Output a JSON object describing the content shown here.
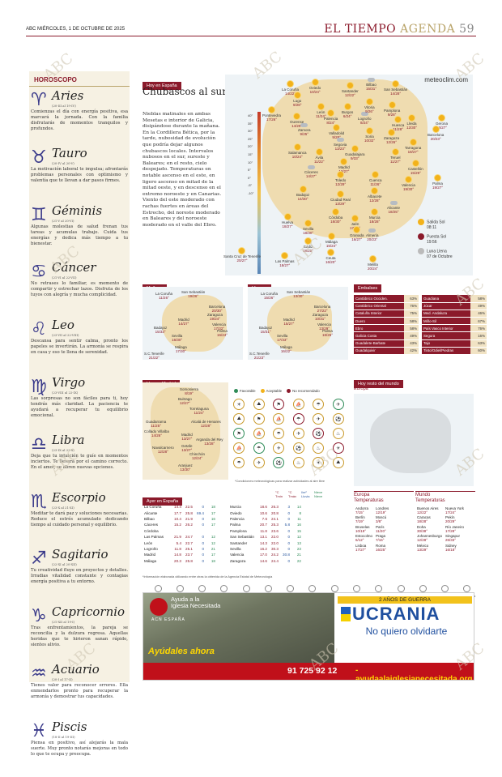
{
  "header": {
    "left": "ABC   MIÉRCOLES, 1 DE OCTUBRE DE 2025",
    "section": "EL TIEMPO",
    "sub": "AGENDA",
    "page": "59"
  },
  "horoscopo": {
    "title": "HOROSCOPO",
    "signs": [
      {
        "sym": "♈",
        "name": "Aries",
        "date": "(20-III al 19-IV)",
        "text": "Comienzas el día con energía positiva, esa marcará la jornada. Con la familia disfrutarás de momentos tranquilos y profundos."
      },
      {
        "sym": "♉",
        "name": "Tauro",
        "date": "(20-IV al 20-V)",
        "text": "La motivación laboral te impulsa; afrontarás problemas personales con optimismo y valentía que te llevan a dar pasos firmes."
      },
      {
        "sym": "♊",
        "name": "Géminis",
        "date": "(21-V al 20-VI)",
        "text": "Algunas molestias de salud frenan tus tareas y acumulas trabajo. Cuida tus energías y dedica más tiempo a tu bienestar."
      },
      {
        "sym": "♋",
        "name": "Cáncer",
        "date": "(21-VI al 22-VII)",
        "text": "No retrases lo familiar, es momento de compartir y estrechar lazos. Disfruta de los tuyos con alegría y mucha complicidad."
      },
      {
        "sym": "♌",
        "name": "Leo",
        "date": "(23-VII al 22-VIII)",
        "text": "Descansa para sentir calma, pronto los papeles se invertirán. La armonía se respira en casa y eso te llena de serenidad."
      },
      {
        "sym": "♍",
        "name": "Virgo",
        "date": "(23-VIII al 22-IX)",
        "text": "Las sorpresas no son fáciles para ti, hoy tendrás más claridad. La paciencia te ayudará a recuperar tu equilibrio emocional."
      },
      {
        "sym": "♎",
        "name": "Libra",
        "date": "(23-IX al 22-X)",
        "text": "Deja que tu intuición te guíe en momentos inciertos. Te llevará por el camino correcto. En el amor, se abren nuevas opciones."
      },
      {
        "sym": "♏",
        "name": "Escorpio",
        "date": "(23-X al 21-XI)",
        "text": "Meditar te dará paz y soluciones necesarias. Reduce el estrés acumulado dedicando tiempo al cuidado personal y equilibrio."
      },
      {
        "sym": "♐",
        "name": "Sagitario",
        "date": "(22-XI al 20-XII)",
        "text": "Tu creatividad fluye en proyectos y detalles. Irradias vitalidad constante y contagias energía positiva a tu entorno."
      },
      {
        "sym": "♑",
        "name": "Capricornio",
        "date": "(21-XII al 19-I)",
        "text": "Tras enfrentamientos, la pareja se reconcilia y la dulzura regresa. Aquellas heridas que te hirieron sanan rápido, sientes alivio."
      },
      {
        "sym": "♒",
        "name": "Acuario",
        "date": "(20-I al 17-II)",
        "text": "Tienes valor para reconocer errores. Ella enmendarlos pronto para recuperar la armonía y demostrar tus capacidades."
      },
      {
        "sym": "♓",
        "name": "Piscis",
        "date": "(18-II al 19-III)",
        "text": "Piensa en positivo, así alejarás la mala suerte. Muy pronto notarás mejoras en todo lo que te ocupa y preocupa."
      }
    ]
  },
  "spain": {
    "tag": "Hoy en España",
    "title": "Chubascos al sur",
    "lede": "Nieblas matinales en ambas Mesetas e interior de Galicia, disipándose durante la mañana. En la Cordillera Bética, por la tarde, nubosidad de evolución que podría dejar algunos chubascos locales. Intervalos nubosos en el sur, sureste y Baleares; en el resto, cielo despejado. Temperaturas en notable ascenso en el este, en ligero ascenso en mitad de la mitad oeste, y en descenso en el extremo noroeste y en Canarias. Viento del este moderado con rachas fuertes en áreas del Estrecho, del noreste moderado en Baleares y del noroeste moderado en el valle del Ebro.",
    "brand": "meteoclim.com",
    "scale": [
      "40°",
      "35°",
      "30°",
      "25°",
      "20°",
      "15°",
      "10°",
      "5°",
      "0°",
      "-5°",
      "-10°"
    ],
    "cities": [
      [
        "La Coruña",
        "14/22°"
      ],
      [
        "Oviedo",
        "10/24°"
      ],
      [
        "Santander",
        "12/22°"
      ],
      [
        "Bilbao",
        "15/31°"
      ],
      [
        "San Sebastián",
        "14/28°"
      ],
      [
        "Lugo",
        "9/28°"
      ],
      [
        "Pontevedra",
        "17/26°"
      ],
      [
        "León",
        "11/24°"
      ],
      [
        "Burgos",
        "6/24°"
      ],
      [
        "Palencia",
        "8/24°"
      ],
      [
        "Logroño",
        "8/24°"
      ],
      [
        "Vitoria",
        "9/26°"
      ],
      [
        "Pamplona",
        "9/28°"
      ],
      [
        "Huesca",
        "11/28°"
      ],
      [
        "Lleida",
        "12/30°"
      ],
      [
        "Gerona",
        "16/27°"
      ],
      [
        "Ourense",
        "14/29°"
      ],
      [
        "Zamora",
        "9/25°"
      ],
      [
        "Valladolid",
        "9/28°"
      ],
      [
        "Soria",
        "10/32°"
      ],
      [
        "Zaragoza",
        "12/26°"
      ],
      [
        "Barcelona",
        "20/23°"
      ],
      [
        "Tarragona",
        "18/27°"
      ],
      [
        "Salamanca",
        "10/24°"
      ],
      [
        "Segovia",
        "13/23°"
      ],
      [
        "Ávila",
        "11/22°"
      ],
      [
        "Guadalajara",
        "9/33°"
      ],
      [
        "Teruel",
        "11/27°"
      ],
      [
        "Castellón",
        "15/29°"
      ],
      [
        "Palma",
        "19/27°"
      ],
      [
        "Madrid",
        "13/27°"
      ],
      [
        "Cáceres",
        "14/27°"
      ],
      [
        "Toledo",
        "12/29°"
      ],
      [
        "Cuenca",
        "11/26°"
      ],
      [
        "Valencia",
        "19/30°"
      ],
      [
        "Badajoz",
        "14/30°"
      ],
      [
        "Ciudad Real",
        "13/29°"
      ],
      [
        "Albacete",
        "12/28°"
      ],
      [
        "Alicante",
        "18/25°"
      ],
      [
        "Huelva",
        "18/27°"
      ],
      [
        "Sevilla",
        "18/30°"
      ],
      [
        "Córdoba",
        "18/30°"
      ],
      [
        "Jaén",
        "17/22°"
      ],
      [
        "Granada",
        "16/27°"
      ],
      [
        "Murcia",
        "18/28°"
      ],
      [
        "Almería",
        "20/23°"
      ],
      [
        "Málaga",
        "15/24°"
      ],
      [
        "Cádiz",
        "18/25°"
      ],
      [
        "Ceuta",
        "16/20°"
      ],
      [
        "Melilla",
        "20/24°"
      ],
      [
        "Santa Cruz de Tenerife",
        "20/27°"
      ],
      [
        "Las Palmas",
        "18/27°"
      ]
    ],
    "legend": [
      {
        "label": "Salida Sol",
        "value": "08:11",
        "color": "#f2b21b"
      },
      {
        "label": "Puesta Sol",
        "value": "19:56",
        "color": "#8b1a2b"
      },
      {
        "label": "Luna Llena",
        "value": "07 de Octubre",
        "color": "#bbbbbb"
      }
    ]
  },
  "manana": {
    "tag": "Mañana",
    "cities": [
      [
        "La Coruña",
        "11/26°"
      ],
      [
        "San Sebastián",
        "19/26°"
      ],
      [
        "Barcelona",
        "20/30°"
      ],
      [
        "Zaragoza",
        "19/24°"
      ],
      [
        "Madrid",
        "14/27°"
      ],
      [
        "Valencia",
        "17/32°"
      ],
      [
        "Palma",
        "16/24°"
      ],
      [
        "Badajoz",
        "15/33°"
      ],
      [
        "Sevilla",
        "16/30°"
      ],
      [
        "Málaga",
        "17/30°"
      ],
      [
        "S.C.Tenerife",
        "21/22°"
      ]
    ]
  },
  "viernes": {
    "tag": "Viernes",
    "cities": [
      [
        "La Coruña",
        "15/26°"
      ],
      [
        "San Sebastián",
        "13/30°"
      ],
      [
        "Barcelona",
        "27/22°"
      ],
      [
        "Zaragoza",
        "10/31°"
      ],
      [
        "Madrid",
        "15/27°"
      ],
      [
        "Valencia",
        "13/29°"
      ],
      [
        "Palma",
        "18/26°"
      ],
      [
        "Badajoz",
        "15/31°"
      ],
      [
        "Sevilla",
        "17/33°"
      ],
      [
        "Málaga",
        "16/22°"
      ],
      [
        "S.C.Tenerife",
        "21/23°"
      ]
    ]
  },
  "embalses": {
    "tag": "Embalses",
    "left": [
      [
        "Cantábrico Occiden.",
        "63%"
      ],
      [
        "Cantábrico Oriental",
        "76%"
      ],
      [
        "Cataluña Interior",
        "75%"
      ],
      [
        "Duero",
        "58%"
      ],
      [
        "Ebro",
        "58%"
      ],
      [
        "Galicia Costa",
        "49%"
      ],
      [
        "Guadalete-Barbate",
        "43%"
      ],
      [
        "Guadalquivir",
        "42%"
      ]
    ],
    "right": [
      [
        "Guadiana",
        "58%"
      ],
      [
        "Júcar",
        "49%"
      ],
      [
        "Med. Andaluza",
        "46%"
      ],
      [
        "Miño-Sil",
        "67%"
      ],
      [
        "País Vasco Interior",
        "76%"
      ],
      [
        "Segura",
        "16%"
      ],
      [
        "Tajo",
        "63%"
      ],
      [
        "Tinto/Odiel/Piedras",
        "60%"
      ]
    ]
  },
  "madrid": {
    "tag": "Hoy en Madrid",
    "cities": [
      [
        "Somosierra",
        "8/19°"
      ],
      [
        "Buitrago",
        "12/27°"
      ],
      [
        "Torrelaguna",
        "11/24°"
      ],
      [
        "Guadarrama",
        "11/25°"
      ],
      [
        "Alcalá de Henares",
        "12/28°"
      ],
      [
        "Collado Villalba",
        "14/26°"
      ],
      [
        "Madrid",
        "13/27°"
      ],
      [
        "Arganda del Rey",
        "13/28°"
      ],
      [
        "Getafe",
        "13/27°"
      ],
      [
        "Navalcarnero",
        "12/28°"
      ],
      [
        "Chinchón",
        "12/24°"
      ],
      [
        "Aranjuez",
        "13/30°"
      ]
    ],
    "legend": [
      {
        "label": "Favorable",
        "color": "#2e8b57"
      },
      {
        "label": "Aceptable",
        "color": "#f2b21b"
      },
      {
        "label": "No recomendado",
        "color": "#8b1a2b"
      }
    ],
    "note": "*Condiciones meteorológicas para realizar actividades al aire libre"
  },
  "mundo": {
    "tag": "Hoy resto del mundo",
    "sub": "Europa"
  },
  "ayer": {
    "tag": "Ayer en España",
    "cols": [
      "°C Tmín",
      "°C Tmáx",
      "l/m² Lluvia",
      "Nieve Nieve"
    ],
    "left": [
      [
        "La Coruña",
        "14.4",
        "22.5",
        "0",
        "18"
      ],
      [
        "Alicante",
        "17.7",
        "25.8",
        "69.4",
        "17"
      ],
      [
        "Bilbao",
        "10.4",
        "21.9",
        "0",
        "16"
      ],
      [
        "Cáceres",
        "15.2",
        "26.2",
        "0",
        "17"
      ],
      [
        "Córdoba",
        "",
        "",
        "",
        ""
      ],
      [
        "Las Palmas",
        "21.9",
        "24.7",
        "0",
        "12"
      ],
      [
        "León",
        "5.4",
        "22.7",
        "0",
        "12"
      ],
      [
        "Logroño",
        "11.8",
        "25.1",
        "0",
        "21"
      ],
      [
        "Madrid",
        "14.8",
        "23.7",
        "0",
        "17"
      ],
      [
        "Málaga",
        "20.3",
        "25.8",
        "0",
        "18"
      ]
    ],
    "right": [
      [
        "Murcia",
        "18.6",
        "26.3",
        "3",
        "14"
      ],
      [
        "Oviedo",
        "10.6",
        "20.8",
        "0",
        "8"
      ],
      [
        "Palencia",
        "7.6",
        "24.1",
        "0",
        "11"
      ],
      [
        "Palma",
        "20.7",
        "25.3",
        "5.8",
        "16"
      ],
      [
        "Pamplona",
        "11.8",
        "23.6",
        "0",
        "15"
      ],
      [
        "San Sebastián",
        "13.1",
        "22.0",
        "0",
        "12"
      ],
      [
        "Santander",
        "14.3",
        "22.0",
        "0",
        "13"
      ],
      [
        "Sevilla",
        "16.2",
        "30.3",
        "0",
        "23"
      ],
      [
        "Valencia",
        "17.0",
        "24.2",
        "30.8",
        "21"
      ],
      [
        "Zaragoza",
        "14.6",
        "24.4",
        "0",
        "22"
      ]
    ]
  },
  "europa": {
    "title": "Europa Temperaturas",
    "rows": [
      [
        "Andorra",
        "7/15°",
        "Londres",
        "12/19°"
      ],
      [
        "Berlín",
        "7/19°",
        "Moscú",
        "3/8°"
      ],
      [
        "Bruselas",
        "10/19°",
        "París",
        "11/20°"
      ],
      [
        "Estocolmo",
        "6/12°",
        "Praga",
        "7/16°"
      ],
      [
        "Lisboa",
        "17/27°",
        "Roma",
        "16/25°",
        ""
      ]
    ]
  },
  "mundo_t": {
    "title": "Mundo Temperaturas",
    "rows": [
      [
        "Buenos Aires",
        "12/22°",
        "Nueva York",
        "17/24°"
      ],
      [
        "Caracas",
        "18/28°",
        "Pekín",
        "20/29°"
      ],
      [
        "Doha",
        "30/38°",
        "Río Janeiro",
        "17/28°"
      ],
      [
        "Johannesburgo",
        "12/28°",
        "Singapur",
        "26/33°"
      ],
      [
        "México",
        "13/29°",
        "Sidney",
        "16/18°"
      ]
    ]
  },
  "footnote": "*Información elaborada utilizando entre otras la obtenida de la Agencia Estatal de Meteorología",
  "icons": [
    "Despejado",
    "Variable",
    "Nuboso",
    "Chubascos",
    "Lluvia",
    "Nieve",
    "Debil",
    "Moderado",
    "Fuerte",
    "Mar llana",
    "Mar rizada",
    "Marejada",
    "Fuerte marejada",
    "Mar gruesa",
    "Muy gruesa"
  ],
  "ad": {
    "org": "Ayuda a la\nIglesia Necesitada",
    "acn": "ACN ESPAÑA",
    "years": "2 AÑOS DE GUERRA",
    "country": "UCRANIA",
    "slogan": "No quiero olvidarte",
    "cta": "Ayúdales ahora",
    "phone": "91 725 92 12",
    "web": "- ayudaalaiglesianecesitada.org"
  },
  "watermark": "ABC"
}
